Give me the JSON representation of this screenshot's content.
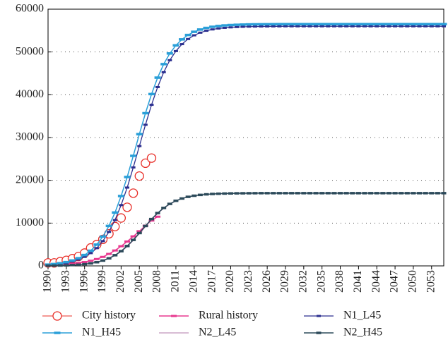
{
  "chart_data": {
    "type": "line",
    "legend": "bottom",
    "grid": true,
    "xlim": [
      1990,
      2055
    ],
    "ylim": [
      0,
      60000
    ],
    "xticks": [
      1990,
      1993,
      1996,
      1999,
      2002,
      2005,
      2008,
      2011,
      2014,
      2017,
      2020,
      2023,
      2026,
      2029,
      2032,
      2035,
      2038,
      2041,
      2044,
      2047,
      2050,
      2053
    ],
    "yticks": [
      0,
      10000,
      20000,
      30000,
      40000,
      50000,
      60000
    ],
    "x": [
      1990,
      1991,
      1992,
      1993,
      1994,
      1995,
      1996,
      1997,
      1998,
      1999,
      2000,
      2001,
      2002,
      2003,
      2004,
      2005,
      2006,
      2007,
      2008,
      2009,
      2010,
      2011,
      2012,
      2013,
      2014,
      2015,
      2016,
      2017,
      2018,
      2019,
      2020,
      2021,
      2022,
      2023,
      2024,
      2025,
      2026,
      2027,
      2028,
      2029,
      2030,
      2031,
      2032,
      2033,
      2034,
      2035,
      2036,
      2037,
      2038,
      2039,
      2040,
      2041,
      2042,
      2043,
      2044,
      2045,
      2046,
      2047,
      2048,
      2049,
      2050,
      2051,
      2052,
      2053,
      2054,
      2055
    ],
    "series": [
      {
        "name": "City history",
        "color": "#e8302a",
        "values": [
          700,
          700,
          1000,
          1300,
          1700,
          2200,
          3000,
          4200,
          5000,
          6200,
          7500,
          9200,
          11200,
          13700,
          17000,
          21000,
          24000,
          25200,
          null,
          null,
          null,
          null,
          null,
          null,
          null,
          null,
          null,
          null,
          null,
          null,
          null,
          null,
          null,
          null,
          null,
          null,
          null,
          null,
          null,
          null,
          null,
          null,
          null,
          null,
          null,
          null,
          null,
          null,
          null,
          null,
          null,
          null,
          null,
          null,
          null,
          null,
          null,
          null,
          null,
          null,
          null,
          null,
          null,
          null,
          null,
          null
        ]
      },
      {
        "name": "Rural history",
        "color": "#e8388f",
        "values": [
          200,
          250,
          300,
          400,
          500,
          700,
          900,
          1200,
          1600,
          2100,
          2800,
          3600,
          4600,
          5700,
          6900,
          8100,
          9400,
          10600,
          11500,
          null,
          null,
          null,
          null,
          null,
          null,
          null,
          null,
          null,
          null,
          null,
          null,
          null,
          null,
          null,
          null,
          null,
          null,
          null,
          null,
          null,
          null,
          null,
          null,
          null,
          null,
          null,
          null,
          null,
          null,
          null,
          null,
          null,
          null,
          null,
          null,
          null,
          null,
          null,
          null,
          null,
          null,
          null,
          null,
          null,
          null,
          null
        ]
      },
      {
        "name": "N1_L45",
        "color": "#2b2f8f",
        "values": [
          252,
          362,
          514,
          735,
          1046,
          1490,
          2110,
          2980,
          4160,
          5790,
          7950,
          10710,
          14210,
          18300,
          23020,
          28000,
          32980,
          37650,
          41790,
          45270,
          48070,
          50210,
          51830,
          53030,
          53890,
          54510,
          54960,
          55270,
          55490,
          55640,
          55750,
          55830,
          55880,
          55920,
          55940,
          55960,
          55970,
          55980,
          55990,
          56000,
          56000,
          56000,
          56000,
          56000,
          56000,
          56000,
          56000,
          56000,
          56000,
          56000,
          56000,
          56000,
          56000,
          56000,
          56000,
          56000,
          56000,
          56000,
          56000,
          56000,
          56000,
          56000,
          56000,
          56000,
          56000,
          56000
        ]
      },
      {
        "name": "N1_H45",
        "color": "#2a9fd8",
        "values": [
          304,
          435,
          621,
          886,
          1261,
          1790,
          2540,
          3540,
          4970,
          6860,
          9340,
          12470,
          16330,
          20770,
          25720,
          30790,
          35690,
          40160,
          44000,
          47160,
          49650,
          51540,
          52940,
          53970,
          54710,
          55240,
          55620,
          55880,
          56070,
          56200,
          56290,
          56350,
          56400,
          56440,
          56460,
          56470,
          56480,
          56490,
          56500,
          56500,
          56500,
          56500,
          56500,
          56500,
          56500,
          56500,
          56500,
          56500,
          56500,
          56500,
          56500,
          56500,
          56500,
          56500,
          56500,
          56500,
          56500,
          56500,
          56500,
          56500,
          56500,
          56500,
          56500,
          56500,
          56500,
          56500
        ]
      },
      {
        "name": "N2_L45",
        "color": "#b07aa8",
        "values": [
          38,
          56,
          83,
          122,
          180,
          264,
          388,
          565,
          825,
          1190,
          1710,
          2410,
          3330,
          4510,
          5920,
          7510,
          9160,
          10790,
          12220,
          13450,
          14410,
          15160,
          15710,
          16110,
          16380,
          16570,
          16710,
          16800,
          16860,
          16900,
          16930,
          16950,
          16960,
          16970,
          16980,
          16990,
          16990,
          16990,
          16990,
          16990,
          16990,
          16990,
          16990,
          16990,
          16990,
          16990,
          16990,
          16990,
          16990,
          16990,
          16990,
          16990,
          16990,
          16990,
          16990,
          16990,
          16990,
          16990,
          16990,
          16990,
          16990,
          16990,
          16990,
          16990,
          16990,
          16990
        ]
      },
      {
        "name": "N2_H45",
        "color": "#2c4a5a",
        "values": [
          40,
          59,
          87,
          128,
          189,
          277,
          407,
          592,
          863,
          1240,
          1775,
          2496,
          3441,
          4645,
          6071,
          7675,
          9325,
          10940,
          12350,
          13550,
          14490,
          15220,
          15750,
          16140,
          16400,
          16590,
          16720,
          16810,
          16870,
          16910,
          16940,
          16960,
          16970,
          16980,
          16990,
          17000,
          17000,
          17000,
          17000,
          17000,
          17000,
          17000,
          17000,
          17000,
          17000,
          17000,
          17000,
          17000,
          17000,
          17000,
          17000,
          17000,
          17000,
          17000,
          17000,
          17000,
          17000,
          17000,
          17000,
          17000,
          17000,
          17000,
          17000,
          17000,
          17000,
          17000
        ]
      }
    ]
  }
}
